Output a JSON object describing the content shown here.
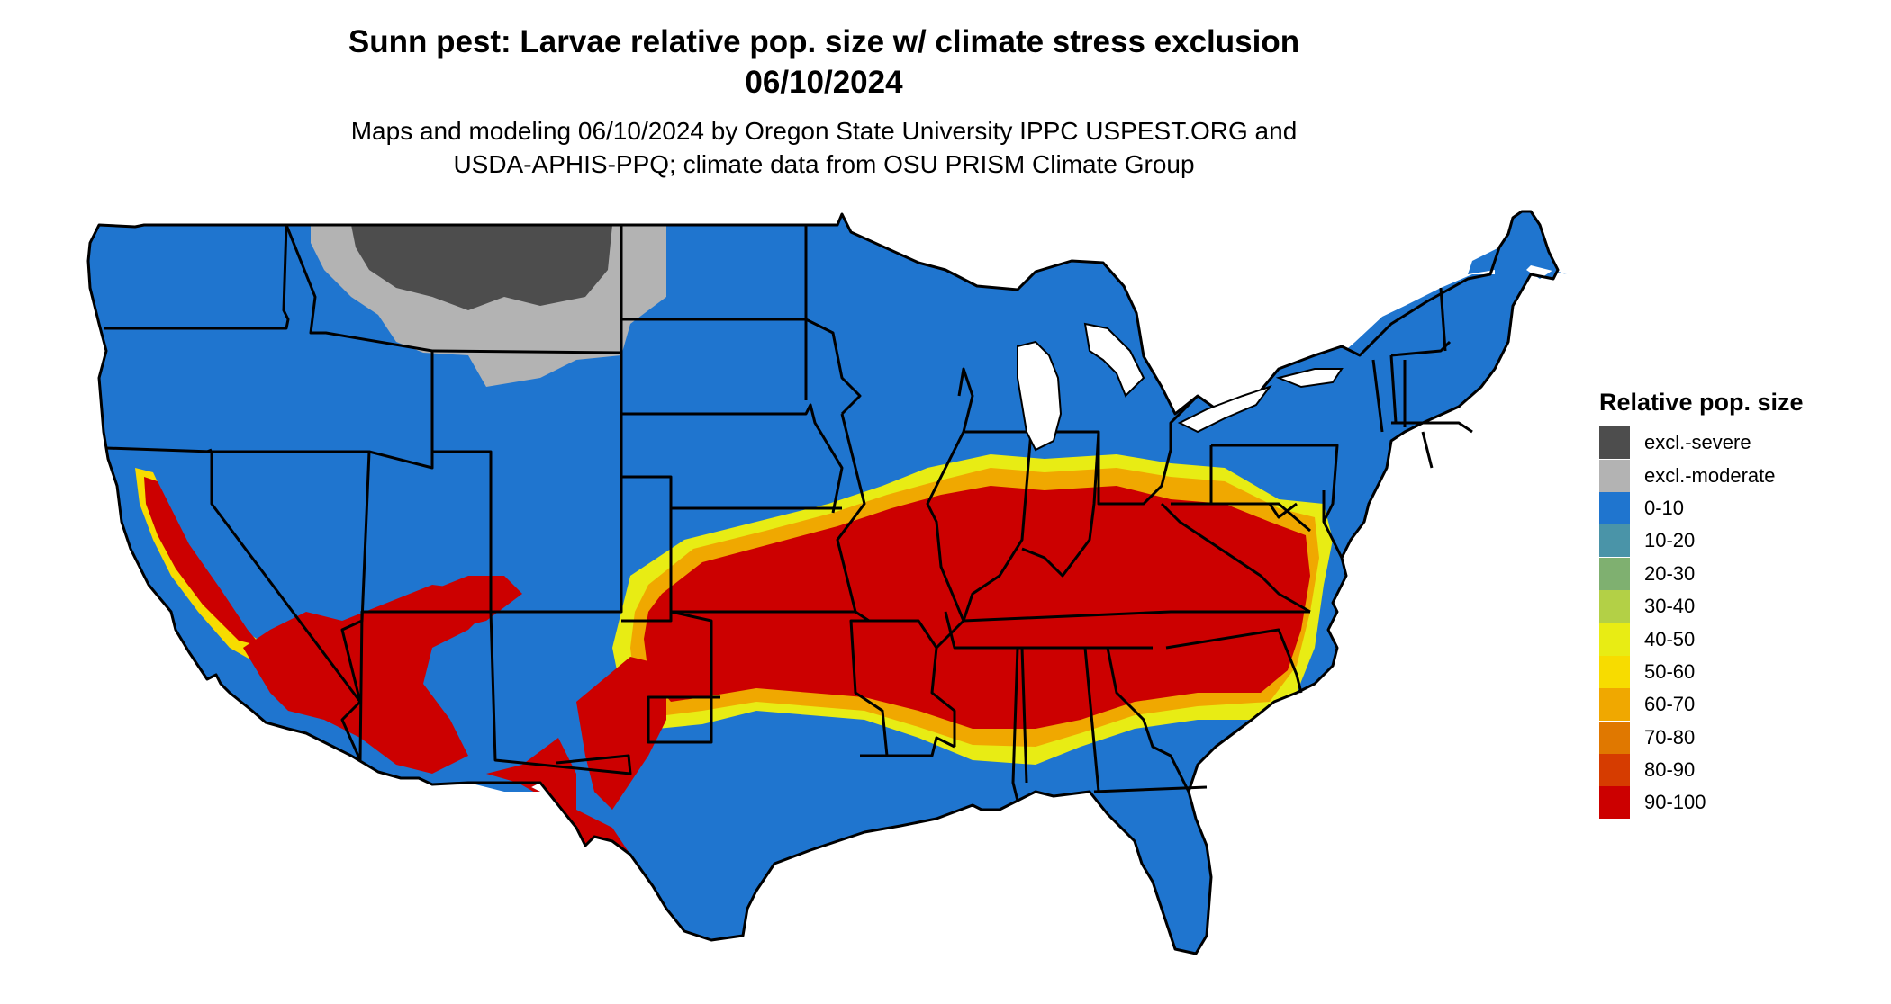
{
  "title": {
    "line1": "Sunn pest: Larvae relative pop. size w/ climate stress exclusion",
    "line2": "06/10/2024"
  },
  "subtitle": {
    "line1": "Maps and modeling 06/10/2024 by Oregon State University IPPC USPEST.ORG and",
    "line2": "USDA-APHIS-PPQ; climate data from OSU PRISM Climate Group"
  },
  "legend": {
    "title": "Relative pop. size",
    "items": [
      {
        "label": "excl.-severe",
        "color": "#4d4d4d"
      },
      {
        "label": "excl.-moderate",
        "color": "#b3b3b3"
      },
      {
        "label": "0-10",
        "color": "#1f75cf"
      },
      {
        "label": "10-20",
        "color": "#4a94a8"
      },
      {
        "label": "20-30",
        "color": "#7fb070"
      },
      {
        "label": "30-40",
        "color": "#b3d046"
      },
      {
        "label": "40-50",
        "color": "#e8ec14"
      },
      {
        "label": "50-60",
        "color": "#f7dc00"
      },
      {
        "label": "60-70",
        "color": "#f0a800"
      },
      {
        "label": "70-80",
        "color": "#e07800"
      },
      {
        "label": "80-90",
        "color": "#d63c00"
      },
      {
        "label": "90-100",
        "color": "#cc0000"
      }
    ]
  }
}
